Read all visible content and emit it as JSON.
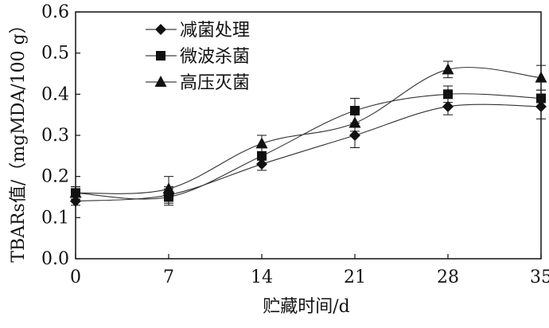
{
  "chart_data": {
    "type": "line",
    "xlabel": "贮藏时间/d",
    "ylabel": "TBARs值/（mgMDA/100 g）",
    "x": [
      0,
      7,
      14,
      21,
      28,
      35
    ],
    "xlim": [
      0,
      35
    ],
    "ylim": [
      0.0,
      0.6
    ],
    "xticks": [
      "0",
      "7",
      "14",
      "21",
      "28",
      "35"
    ],
    "yticks": [
      "0.0",
      "0.1",
      "0.2",
      "0.3",
      "0.4",
      "0.5",
      "0.6"
    ],
    "grid": false,
    "legend_position": "top-left",
    "series": [
      {
        "name": "减菌处理",
        "marker": "diamond",
        "values": [
          0.14,
          0.155,
          0.23,
          0.3,
          0.37,
          0.37
        ],
        "errors": [
          0.01,
          0.02,
          0.015,
          0.03,
          0.02,
          0.03
        ]
      },
      {
        "name": "微波杀菌",
        "marker": "square",
        "values": [
          0.16,
          0.15,
          0.25,
          0.36,
          0.4,
          0.39
        ],
        "errors": [
          0.015,
          0.02,
          0.02,
          0.03,
          0.02,
          0.02
        ]
      },
      {
        "name": "高压灭菌",
        "marker": "triangle",
        "values": [
          0.16,
          0.17,
          0.28,
          0.33,
          0.46,
          0.44
        ],
        "errors": [
          0.015,
          0.03,
          0.02,
          0.02,
          0.02,
          0.03
        ]
      }
    ]
  }
}
